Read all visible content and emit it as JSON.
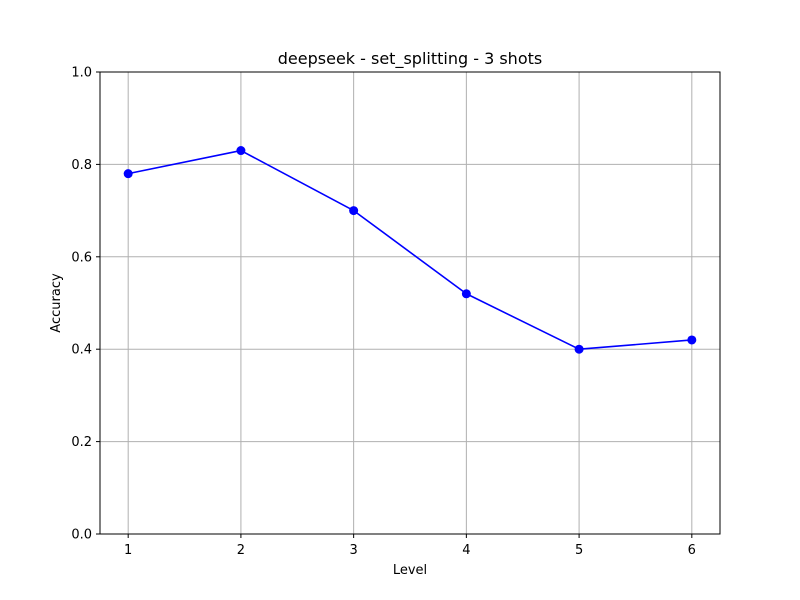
{
  "chart_data": {
    "type": "line",
    "title": "deepseek - set_splitting - 3 shots",
    "xlabel": "Level",
    "ylabel": "Accuracy",
    "x": [
      1,
      2,
      3,
      4,
      5,
      6
    ],
    "x_tick_labels": [
      "1",
      "2",
      "3",
      "4",
      "5",
      "6"
    ],
    "y_tick_labels": [
      "0.0",
      "0.2",
      "0.4",
      "0.6",
      "0.8",
      "1.0"
    ],
    "y_ticks": [
      0.0,
      0.2,
      0.4,
      0.6,
      0.8,
      1.0
    ],
    "xlim": [
      0.75,
      6.25
    ],
    "ylim": [
      0.0,
      1.0
    ],
    "grid": true,
    "series": [
      {
        "values": [
          0.78,
          0.83,
          0.7,
          0.52,
          0.4,
          0.42
        ],
        "color": "#0000ff",
        "marker": "circle"
      }
    ],
    "colors": {
      "line": "#0000ff",
      "grid": "#b0b0b0",
      "axes": "#000000"
    }
  }
}
